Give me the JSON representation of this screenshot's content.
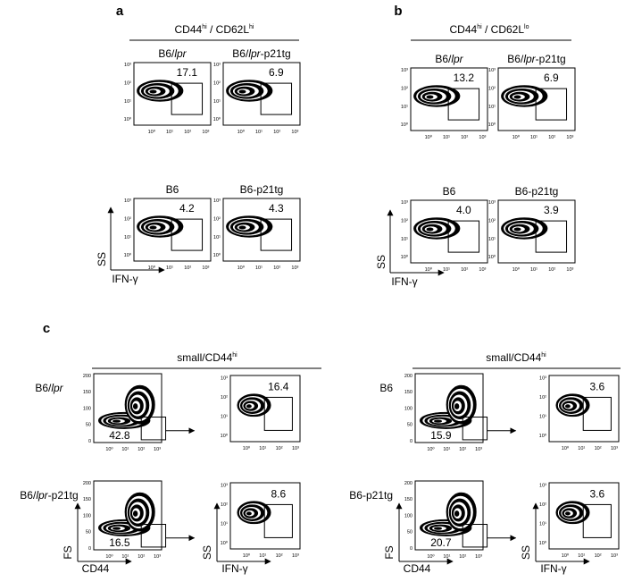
{
  "log_ticks": [
    "10⁰",
    "10¹",
    "10²",
    "10³"
  ],
  "fs_ticks": [
    0,
    50,
    100,
    150,
    200
  ],
  "panel_a": {
    "letter": "a",
    "header": [
      {
        "t": "CD44"
      },
      {
        "sup": "hi"
      },
      {
        "t": " / CD62L"
      },
      {
        "sup": "hi"
      }
    ],
    "plots": [
      {
        "label": {
          "t": "B6/",
          "i": "lpr"
        },
        "gate_value": "17.1"
      },
      {
        "label": {
          "t": "B6/",
          "i": "lpr",
          "s": "-p21tg"
        },
        "gate_value": "6.9"
      },
      {
        "label": {
          "t": "B6"
        },
        "gate_value": "4.2"
      },
      {
        "label": {
          "t": "B6-p21tg"
        },
        "gate_value": "4.3"
      }
    ],
    "y_axis": "SS",
    "x_axis": "IFN-γ"
  },
  "panel_b": {
    "letter": "b",
    "header": [
      {
        "t": "CD44"
      },
      {
        "sup": "hi"
      },
      {
        "t": " / CD62L"
      },
      {
        "sup": "lo"
      }
    ],
    "plots": [
      {
        "label": {
          "t": "B6/",
          "i": "lpr"
        },
        "gate_value": "13.2"
      },
      {
        "label": {
          "t": "B6/",
          "i": "lpr",
          "s": "-p21tg"
        },
        "gate_value": "6.9"
      },
      {
        "label": {
          "t": "B6"
        },
        "gate_value": "4.0"
      },
      {
        "label": {
          "t": "B6-p21tg"
        },
        "gate_value": "3.9"
      }
    ],
    "y_axis": "SS",
    "x_axis": "IFN-γ"
  },
  "panel_c": {
    "letter": "c",
    "groups": [
      {
        "header": [
          {
            "t": "small/CD44"
          },
          {
            "sup": "hi"
          }
        ],
        "rows": [
          {
            "label": {
              "t": "B6/",
              "i": "lpr"
            },
            "fs_gate_value": "42.8",
            "ifn_gate_value": "16.4"
          },
          {
            "label": {
              "t": "B6/",
              "i": "lpr",
              "s": "-p21tg"
            },
            "fs_gate_value": "16.5",
            "ifn_gate_value": "8.6"
          }
        ]
      },
      {
        "header": [
          {
            "t": "small/CD44"
          },
          {
            "sup": "hi"
          }
        ],
        "rows": [
          {
            "label": {
              "t": "B6"
            },
            "fs_gate_value": "15.9",
            "ifn_gate_value": "3.6"
          },
          {
            "label": {
              "t": "B6-p21tg"
            },
            "fs_gate_value": "20.7",
            "ifn_gate_value": "3.6"
          }
        ]
      }
    ],
    "fs_axis": "FS",
    "cd44_axis": "CD44",
    "ss_axis": "SS",
    "ifn_axis": "IFN-γ"
  }
}
